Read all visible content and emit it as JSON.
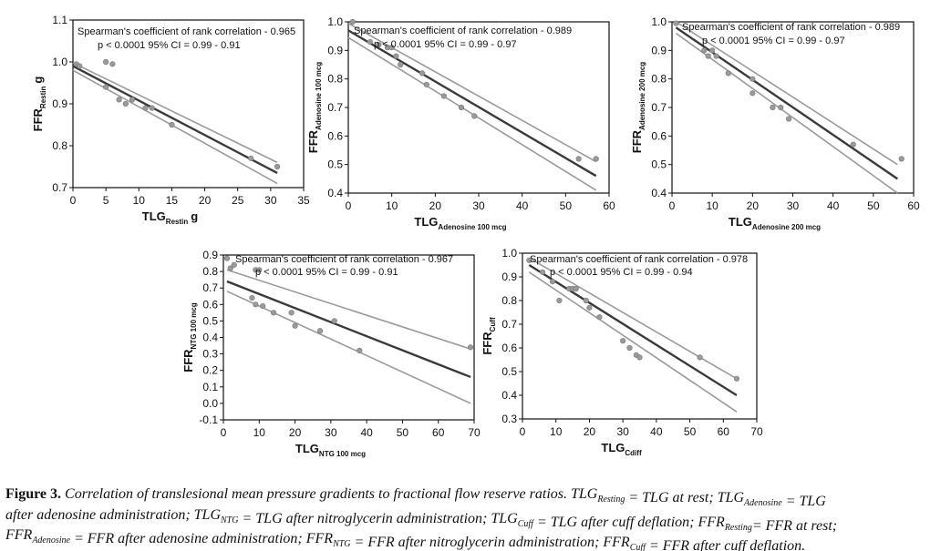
{
  "chart_data": [
    {
      "type": "scatter",
      "id": "p1",
      "annotation_line1": "Spearman's coefficient of rank correlation - 0.965",
      "annotation_line2": "p < 0.0001  95% CI = 0.99 - 0.91",
      "ylabel": "FFR",
      "ylabel_sub": "Restin",
      "ylabel_suffix": "g",
      "xlabel": "TLG",
      "xlabel_sub": "Restin",
      "xlabel_suffix": "g",
      "xlim": [
        0,
        35
      ],
      "ylim": [
        0.7,
        1.1
      ],
      "xticks": [
        0,
        5,
        10,
        15,
        20,
        25,
        30,
        35
      ],
      "yticks": [
        0.7,
        0.8,
        0.9,
        1.0,
        1.1
      ],
      "points": [
        [
          0.5,
          0.995
        ],
        [
          1,
          0.99
        ],
        [
          5,
          1.0
        ],
        [
          6,
          0.995
        ],
        [
          5,
          0.94
        ],
        [
          7,
          0.91
        ],
        [
          8,
          0.9
        ],
        [
          9,
          0.91
        ],
        [
          11,
          0.89
        ],
        [
          12,
          0.89
        ],
        [
          15,
          0.85
        ],
        [
          27,
          0.77
        ],
        [
          31,
          0.75
        ]
      ],
      "fit": [
        [
          0,
          0.99
        ],
        [
          31,
          0.735
        ]
      ],
      "ci_upper": [
        [
          0,
          0.998
        ],
        [
          31,
          0.76
        ]
      ],
      "ci_lower": [
        [
          0,
          0.98
        ],
        [
          31,
          0.71
        ]
      ]
    },
    {
      "type": "scatter",
      "id": "p2",
      "annotation_line1": "Spearman's coefficient of rank correlation - 0.989",
      "annotation_line2": "p < 0.0001  95% CI = 0.99 - 0.97",
      "ylabel": "FFR",
      "ylabel_sub": "Adenosine 100 mcg",
      "ylabel_suffix": "",
      "xlabel": "TLG",
      "xlabel_sub": "Adenosine 100 mcg",
      "xlabel_suffix": "",
      "xlim": [
        0,
        60
      ],
      "ylim": [
        0.4,
        1.0
      ],
      "xticks": [
        0,
        10,
        20,
        30,
        40,
        50,
        60
      ],
      "yticks": [
        0.4,
        0.5,
        0.6,
        0.7,
        0.8,
        0.9,
        1.0
      ],
      "points": [
        [
          1,
          1.0
        ],
        [
          5,
          0.93
        ],
        [
          7,
          0.92
        ],
        [
          9,
          0.91
        ],
        [
          10,
          0.91
        ],
        [
          11,
          0.88
        ],
        [
          12,
          0.85
        ],
        [
          17,
          0.82
        ],
        [
          18,
          0.78
        ],
        [
          22,
          0.74
        ],
        [
          26,
          0.7
        ],
        [
          29,
          0.67
        ],
        [
          53,
          0.52
        ],
        [
          57,
          0.52
        ]
      ],
      "fit": [
        [
          0,
          0.97
        ],
        [
          57,
          0.46
        ]
      ],
      "ci_upper": [
        [
          0,
          0.995
        ],
        [
          57,
          0.51
        ]
      ],
      "ci_lower": [
        [
          0,
          0.945
        ],
        [
          57,
          0.41
        ]
      ]
    },
    {
      "type": "scatter",
      "id": "p3",
      "annotation_line1": "Spearman's coefficient of rank correlation - 0.989",
      "annotation_line2": "p < 0.0001  95% CI = 0.99 - 0.97",
      "ylabel": "FFR",
      "ylabel_sub": "Adenosine 200 mcg",
      "ylabel_suffix": "",
      "xlabel": "TLG",
      "xlabel_sub": "Adenosine 200 mcg",
      "xlabel_suffix": "",
      "xlim": [
        0,
        60
      ],
      "ylim": [
        0.4,
        1.0
      ],
      "xticks": [
        0,
        10,
        20,
        30,
        40,
        50,
        60
      ],
      "yticks": [
        0.4,
        0.5,
        0.6,
        0.7,
        0.8,
        0.9,
        1.0
      ],
      "points": [
        [
          1,
          0.995
        ],
        [
          8,
          0.9
        ],
        [
          9,
          0.88
        ],
        [
          10,
          0.9
        ],
        [
          11,
          0.88
        ],
        [
          14,
          0.82
        ],
        [
          20,
          0.8
        ],
        [
          20,
          0.75
        ],
        [
          25,
          0.7
        ],
        [
          27,
          0.7
        ],
        [
          29,
          0.66
        ],
        [
          45,
          0.57
        ],
        [
          57,
          0.52
        ]
      ],
      "fit": [
        [
          1,
          0.98
        ],
        [
          56,
          0.45
        ]
      ],
      "ci_upper": [
        [
          1,
          1.0
        ],
        [
          56,
          0.5
        ]
      ],
      "ci_lower": [
        [
          1,
          0.96
        ],
        [
          56,
          0.4
        ]
      ]
    },
    {
      "type": "scatter",
      "id": "p4",
      "annotation_line1": "Spearman's coefficient of rank correlation - 0.967",
      "annotation_line2": "p < 0.0001  95% CI = 0.99 - 0.91",
      "ylabel": "FFR",
      "ylabel_sub": "NTG 100 mcg",
      "ylabel_suffix": "",
      "xlabel": "TLG",
      "xlabel_sub": "NTG 100 mcg",
      "xlabel_suffix": "",
      "xlim": [
        0,
        70
      ],
      "ylim": [
        -0.1,
        0.9
      ],
      "xticks": [
        0,
        10,
        20,
        30,
        40,
        50,
        60,
        70
      ],
      "yticks": [
        -0.1,
        0.0,
        0.1,
        0.2,
        0.3,
        0.4,
        0.5,
        0.6,
        0.7,
        0.8,
        0.9
      ],
      "points": [
        [
          1,
          0.88
        ],
        [
          2,
          0.82
        ],
        [
          3,
          0.84
        ],
        [
          9,
          0.81
        ],
        [
          10,
          0.81
        ],
        [
          8,
          0.64
        ],
        [
          9,
          0.6
        ],
        [
          11,
          0.59
        ],
        [
          14,
          0.55
        ],
        [
          19,
          0.55
        ],
        [
          20,
          0.47
        ],
        [
          27,
          0.44
        ],
        [
          31,
          0.5
        ],
        [
          38,
          0.32
        ],
        [
          69,
          0.34
        ]
      ],
      "fit": [
        [
          1,
          0.74
        ],
        [
          69,
          0.16
        ]
      ],
      "ci_upper": [
        [
          1,
          0.81
        ],
        [
          69,
          0.33
        ]
      ],
      "ci_lower": [
        [
          1,
          0.68
        ],
        [
          69,
          0.0
        ]
      ]
    },
    {
      "type": "scatter",
      "id": "p5",
      "annotation_line1": "Spearman's coefficient of rank correlation - 0.978",
      "annotation_line2": "p < 0.0001  95% CI = 0.99 - 0.94",
      "ylabel": "FFR",
      "ylabel_sub": "Cuff",
      "ylabel_suffix": "",
      "xlabel": "TLG",
      "xlabel_sub": "Cdiff",
      "xlabel_suffix": "",
      "xlim": [
        0,
        70
      ],
      "ylim": [
        0.3,
        1.0
      ],
      "xticks": [
        0,
        10,
        20,
        30,
        40,
        50,
        60,
        70
      ],
      "yticks": [
        0.3,
        0.4,
        0.5,
        0.6,
        0.7,
        0.8,
        0.9,
        1.0
      ],
      "points": [
        [
          2,
          0.97
        ],
        [
          6,
          0.92
        ],
        [
          9,
          0.88
        ],
        [
          11,
          0.8
        ],
        [
          14,
          0.85
        ],
        [
          15,
          0.85
        ],
        [
          16,
          0.85
        ],
        [
          19,
          0.8
        ],
        [
          20,
          0.77
        ],
        [
          23,
          0.73
        ],
        [
          30,
          0.63
        ],
        [
          32,
          0.6
        ],
        [
          34,
          0.57
        ],
        [
          35,
          0.56
        ],
        [
          53,
          0.56
        ],
        [
          64,
          0.47
        ]
      ],
      "fit": [
        [
          2,
          0.95
        ],
        [
          64,
          0.4
        ]
      ],
      "ci_upper": [
        [
          2,
          0.98
        ],
        [
          64,
          0.47
        ]
      ],
      "ci_lower": [
        [
          2,
          0.92
        ],
        [
          64,
          0.33
        ]
      ]
    }
  ],
  "caption": {
    "label": "Figure 3.",
    "line1": [
      {
        "t": " Correlation of translesional mean pressure gradients to fractional flow reserve ratios. TLG"
      },
      {
        "s": "Resting"
      },
      {
        "t": " = TLG at rest; TLG"
      },
      {
        "s": "Adenosine"
      },
      {
        "t": " = TLG"
      }
    ],
    "line2": [
      {
        "t": "after adenosine administration; TLG"
      },
      {
        "s": "NTG"
      },
      {
        "t": " = TLG after nitroglycerin administration; TLG"
      },
      {
        "s": "Cuff"
      },
      {
        "t": " = TLG after cuff deflation; FFR"
      },
      {
        "s": "Resting"
      },
      {
        "t": "= FFR at rest;"
      }
    ],
    "line3": [
      {
        "t": "FFR"
      },
      {
        "s": "Adenosine"
      },
      {
        "t": " = FFR after adenosine administration; FFR"
      },
      {
        "s": "NTG"
      },
      {
        "t": " = FFR after nitroglycerin administration; FFR"
      },
      {
        "s": "Cuff"
      },
      {
        "t": " = FFR after cuff deflation."
      }
    ]
  },
  "colors": {
    "axis": "#111111",
    "fit": "#3a3a3a",
    "ci": "#9a9a9a",
    "point": "#9a9a9a"
  }
}
